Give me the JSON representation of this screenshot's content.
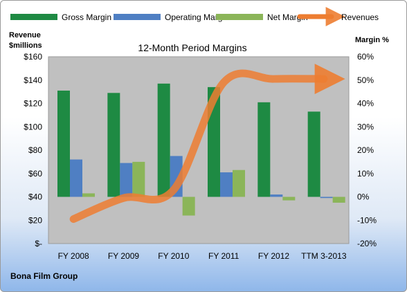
{
  "chart_data": {
    "type": "bar",
    "title": "12-Month Period Margins",
    "left_axis_title": [
      "Revenue",
      "$millions"
    ],
    "right_axis_title": "Margin %",
    "footer": "Bona Film Group",
    "categories": [
      "FY 2008",
      "FY 2009",
      "FY 2010",
      "FY 2011",
      "FY 2012",
      "TTM 3-2013"
    ],
    "left_ticks": [
      "$160",
      "$140",
      "$120",
      "$100",
      "$80",
      "$60",
      "$40",
      "$20",
      "$-"
    ],
    "right_ticks": [
      "60%",
      "50%",
      "40%",
      "30%",
      "20%",
      "10%",
      "0%",
      "-10%",
      "-20%"
    ],
    "ylim_left": [
      0,
      160
    ],
    "ylim_right": [
      -20,
      60
    ],
    "legend_position": "top",
    "grid": false,
    "series": [
      {
        "name": "Gross Margin",
        "kind": "bar",
        "axis": "right",
        "color": "#1e8a43",
        "values": [
          45.5,
          44.5,
          48.5,
          47.0,
          40.5,
          36.5
        ]
      },
      {
        "name": "Operating Margin",
        "kind": "bar",
        "axis": "right",
        "color": "#4f7fc3",
        "values": [
          16.0,
          14.5,
          17.5,
          10.5,
          1.0,
          -0.5
        ]
      },
      {
        "name": "Net Margin",
        "kind": "bar",
        "axis": "right",
        "color": "#8bb559",
        "values": [
          1.5,
          15.0,
          -8.0,
          11.5,
          -1.5,
          -2.5
        ]
      },
      {
        "name": "Revenues",
        "kind": "line",
        "axis": "left",
        "color": "#ed7d31",
        "values": [
          21,
          39,
          46,
          138,
          141,
          141
        ]
      }
    ]
  }
}
